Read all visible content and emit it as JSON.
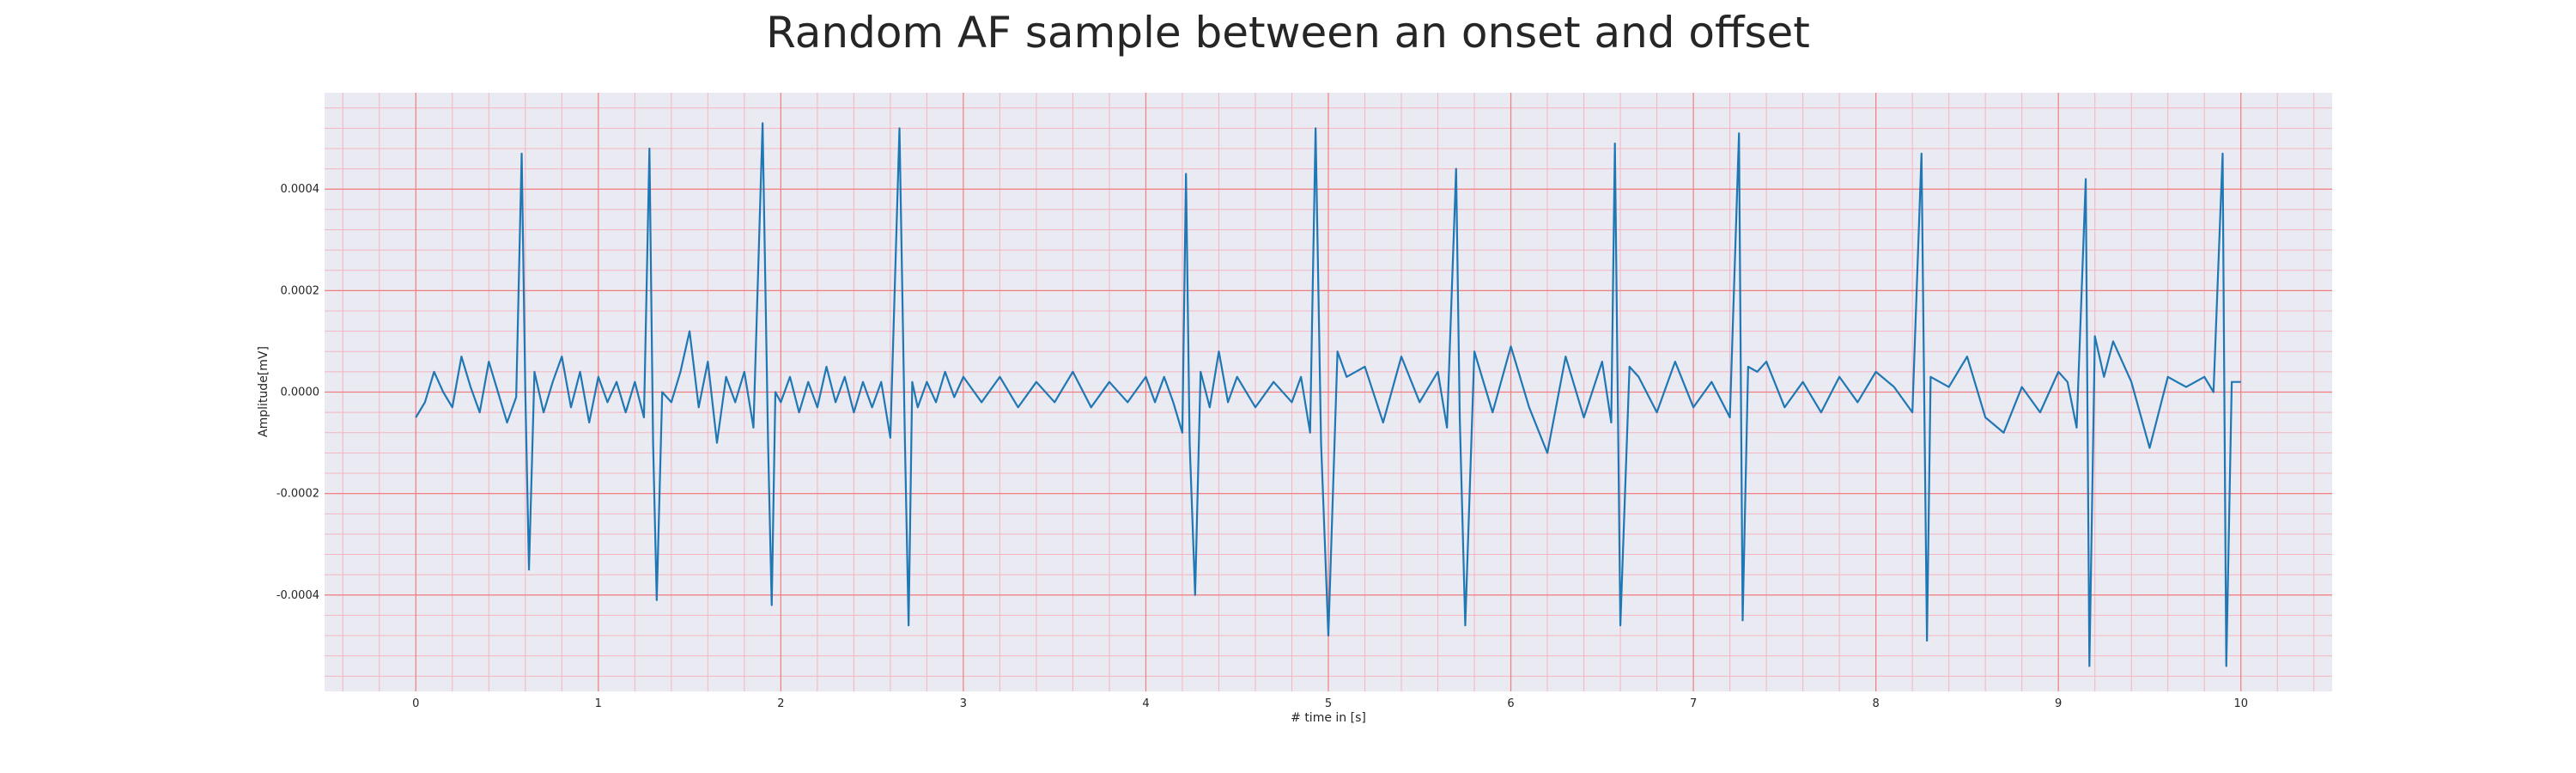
{
  "chart_data": {
    "type": "line",
    "title": "Random AF sample between an onset and offset",
    "xlabel": "# time in [s]",
    "ylabel": "Amplitude[mV]",
    "xlim": [
      -0.5,
      10.5
    ],
    "ylim": [
      -0.00059,
      0.00059
    ],
    "xticks": [
      0,
      1,
      2,
      3,
      4,
      5,
      6,
      7,
      8,
      9,
      10
    ],
    "xtick_labels": [
      "0",
      "1",
      "2",
      "3",
      "4",
      "5",
      "6",
      "7",
      "8",
      "9",
      "10"
    ],
    "yticks": [
      -0.0004,
      -0.0002,
      0.0,
      0.0002,
      0.0004
    ],
    "ytick_labels": [
      "-0.0004",
      "-0.0002",
      "0.0000",
      "0.0002",
      "0.0004"
    ],
    "grid": true,
    "minor_grid": true,
    "colors": {
      "background": "#eaeaf2",
      "major_grid": "#f08080",
      "minor_grid": "#f5b5c0",
      "line": "#1f77b4"
    },
    "series": [
      {
        "line_color": "#1f77b4",
        "x": [
          0.0,
          0.05,
          0.1,
          0.15,
          0.2,
          0.25,
          0.3,
          0.35,
          0.4,
          0.45,
          0.5,
          0.55,
          0.58,
          0.6,
          0.62,
          0.65,
          0.7,
          0.75,
          0.8,
          0.85,
          0.9,
          0.95,
          1.0,
          1.05,
          1.1,
          1.15,
          1.2,
          1.25,
          1.28,
          1.3,
          1.32,
          1.35,
          1.4,
          1.45,
          1.5,
          1.55,
          1.6,
          1.65,
          1.7,
          1.75,
          1.8,
          1.85,
          1.9,
          1.93,
          1.95,
          1.97,
          2.0,
          2.05,
          2.1,
          2.15,
          2.2,
          2.25,
          2.3,
          2.35,
          2.4,
          2.45,
          2.5,
          2.55,
          2.6,
          2.65,
          2.68,
          2.7,
          2.72,
          2.75,
          2.8,
          2.85,
          2.9,
          2.95,
          3.0,
          3.1,
          3.2,
          3.3,
          3.4,
          3.5,
          3.6,
          3.7,
          3.8,
          3.9,
          4.0,
          4.05,
          4.1,
          4.15,
          4.2,
          4.22,
          4.24,
          4.27,
          4.3,
          4.35,
          4.4,
          4.45,
          4.5,
          4.6,
          4.7,
          4.8,
          4.85,
          4.9,
          4.93,
          4.96,
          5.0,
          5.05,
          5.1,
          5.2,
          5.3,
          5.4,
          5.5,
          5.6,
          5.65,
          5.7,
          5.72,
          5.75,
          5.8,
          5.9,
          6.0,
          6.1,
          6.2,
          6.3,
          6.4,
          6.5,
          6.55,
          6.57,
          6.6,
          6.65,
          6.7,
          6.8,
          6.9,
          7.0,
          7.1,
          7.2,
          7.25,
          7.27,
          7.3,
          7.35,
          7.4,
          7.5,
          7.6,
          7.7,
          7.8,
          7.9,
          8.0,
          8.1,
          8.2,
          8.25,
          8.28,
          8.3,
          8.35,
          8.4,
          8.5,
          8.6,
          8.7,
          8.8,
          8.9,
          9.0,
          9.05,
          9.1,
          9.15,
          9.17,
          9.2,
          9.25,
          9.3,
          9.4,
          9.5,
          9.6,
          9.7,
          9.8,
          9.85,
          9.9,
          9.92,
          9.95,
          10.0
        ],
        "y": [
          -5e-05,
          -2e-05,
          4e-05,
          0.0,
          -3e-05,
          7e-05,
          1e-05,
          -4e-05,
          6e-05,
          0.0,
          -6e-05,
          -1e-05,
          0.00047,
          0.0,
          -0.00035,
          4e-05,
          -4e-05,
          2e-05,
          7e-05,
          -3e-05,
          4e-05,
          -6e-05,
          3e-05,
          -2e-05,
          2e-05,
          -4e-05,
          2e-05,
          -5e-05,
          0.00048,
          -0.0001,
          -0.00041,
          0.0,
          -2e-05,
          4e-05,
          0.00012,
          -3e-05,
          6e-05,
          -0.0001,
          3e-05,
          -2e-05,
          4e-05,
          -7e-05,
          0.00053,
          -0.0001,
          -0.00042,
          0.0,
          -2e-05,
          3e-05,
          -4e-05,
          2e-05,
          -3e-05,
          5e-05,
          -2e-05,
          3e-05,
          -4e-05,
          2e-05,
          -3e-05,
          2e-05,
          -9e-05,
          0.00052,
          -0.0001,
          -0.00046,
          2e-05,
          -3e-05,
          2e-05,
          -2e-05,
          4e-05,
          -1e-05,
          3e-05,
          -2e-05,
          3e-05,
          -3e-05,
          2e-05,
          -2e-05,
          4e-05,
          -3e-05,
          2e-05,
          -2e-05,
          3e-05,
          -2e-05,
          3e-05,
          -2e-05,
          -8e-05,
          0.00043,
          -0.0001,
          -0.0004,
          4e-05,
          -3e-05,
          8e-05,
          -2e-05,
          3e-05,
          -3e-05,
          2e-05,
          -2e-05,
          3e-05,
          -8e-05,
          0.00052,
          -0.0001,
          -0.00048,
          8e-05,
          3e-05,
          5e-05,
          -6e-05,
          7e-05,
          -2e-05,
          4e-05,
          -7e-05,
          0.00044,
          -5e-05,
          -0.00046,
          8e-05,
          -4e-05,
          9e-05,
          -3e-05,
          -0.00012,
          7e-05,
          -5e-05,
          6e-05,
          -6e-05,
          0.00049,
          -0.00046,
          5e-05,
          3e-05,
          -4e-05,
          6e-05,
          -3e-05,
          2e-05,
          -5e-05,
          0.00051,
          -0.00045,
          5e-05,
          4e-05,
          6e-05,
          -3e-05,
          2e-05,
          -4e-05,
          3e-05,
          -2e-05,
          4e-05,
          1e-05,
          -4e-05,
          0.00047,
          -0.00049,
          3e-05,
          2e-05,
          1e-05,
          7e-05,
          -5e-05,
          -8e-05,
          1e-05,
          -4e-05,
          4e-05,
          2e-05,
          -7e-05,
          0.00042,
          -0.00054,
          0.00011,
          3e-05,
          0.0001,
          2e-05,
          -0.00011,
          3e-05,
          1e-05,
          3e-05,
          0.0,
          0.00047,
          -0.00054,
          2e-05,
          2e-05
        ]
      }
    ]
  }
}
